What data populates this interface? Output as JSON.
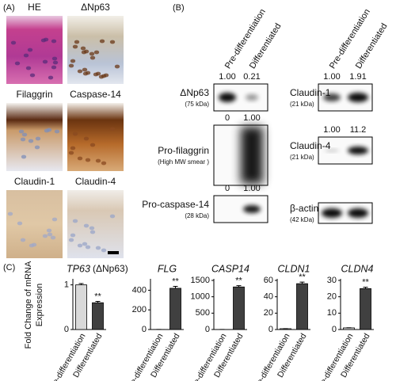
{
  "panel_a": {
    "label": "(A)",
    "stains": [
      "HE",
      "ΔNp63",
      "Filaggrin",
      "Caspase-14",
      "Claudin-1",
      "Claudin-4"
    ]
  },
  "panel_b": {
    "label": "(B)",
    "columns": [
      "Pre-differentiation",
      "Differentiated"
    ],
    "blots": [
      {
        "name": "ΔNp63",
        "size": "(75 kDa)",
        "quant": [
          "1.00",
          "0.21"
        ]
      },
      {
        "name": "Pro-filaggrin",
        "size": "(High MW smear )",
        "quant": [
          "0",
          "1.00"
        ]
      },
      {
        "name": "Pro-caspase-14",
        "size": "(28 kDa)",
        "quant": [
          "0",
          "1.00"
        ]
      },
      {
        "name": "Claudin-1",
        "size": "(21 kDa)",
        "quant": [
          "1.00",
          "1.91"
        ]
      },
      {
        "name": "Claudin-4",
        "size": "(21 kDa)",
        "quant": [
          "1.00",
          "11.2"
        ]
      },
      {
        "name": "β-actin",
        "size": "(42 kDa)"
      }
    ]
  },
  "panel_c": {
    "label": "(C)",
    "y_label": [
      "Fold Change of mRNA",
      "Expression"
    ]
  },
  "chart_data": [
    {
      "type": "bar",
      "title": "TP63",
      "subtitle": "(ΔNp63)",
      "categories": [
        "Pre-differentiation",
        "Differentiated"
      ],
      "values": [
        1,
        0.6
      ],
      "errors": [
        0.03,
        0.03
      ],
      "significance": [
        null,
        "**"
      ],
      "colors": [
        "#d9d9d9",
        "#404040"
      ],
      "ylim": [
        0,
        1.1
      ],
      "yticks": [
        0,
        1
      ]
    },
    {
      "type": "bar",
      "title": "FLG",
      "categories": [
        "Pre-differentiation",
        "Differentiated"
      ],
      "values": [
        1,
        420
      ],
      "errors": [
        0.5,
        20
      ],
      "significance": [
        null,
        "**"
      ],
      "colors": [
        "#d9d9d9",
        "#404040"
      ],
      "ylim": [
        0,
        500
      ],
      "yticks": [
        0,
        200,
        400
      ]
    },
    {
      "type": "bar",
      "title": "CASP14",
      "categories": [
        "Pre-differentiation",
        "Differentiated"
      ],
      "values": [
        1,
        1300
      ],
      "errors": [
        1,
        40
      ],
      "significance": [
        null,
        "**"
      ],
      "colors": [
        "#d9d9d9",
        "#404040"
      ],
      "ylim": [
        0,
        1500
      ],
      "yticks": [
        0,
        500,
        1000,
        1500
      ]
    },
    {
      "type": "bar",
      "title": "CLDN1",
      "categories": [
        "Pre-differentiation",
        "Differentiated"
      ],
      "values": [
        1,
        56
      ],
      "errors": [
        0.1,
        2
      ],
      "significance": [
        null,
        "**"
      ],
      "colors": [
        "#d9d9d9",
        "#404040"
      ],
      "ylim": [
        0,
        60
      ],
      "yticks": [
        0,
        20,
        40,
        60
      ]
    },
    {
      "type": "bar",
      "title": "CLDN4",
      "categories": [
        "Pre-differentiation",
        "Differentiated"
      ],
      "values": [
        1,
        25
      ],
      "errors": [
        0.1,
        0.8
      ],
      "significance": [
        null,
        "**"
      ],
      "colors": [
        "#d9d9d9",
        "#404040"
      ],
      "ylim": [
        0,
        30
      ],
      "yticks": [
        0,
        10,
        20,
        30
      ]
    }
  ]
}
